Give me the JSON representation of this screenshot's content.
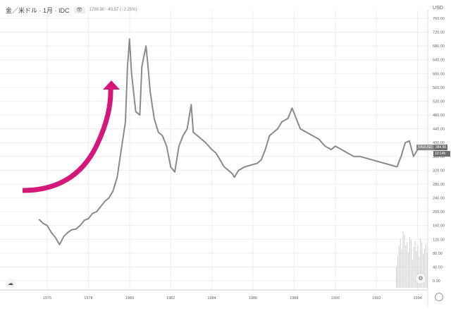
{
  "header": {
    "symbol_title": "金／米ドル · 1月 · IDC",
    "visibility_toggle": "👁",
    "ohlc_change": "1769.90  −40.57 (−2.25%)"
  },
  "axis": {
    "currency": "USD",
    "y_labels": [
      "760.00",
      "720.00",
      "680.00",
      "640.00",
      "600.00",
      "560.00",
      "520.00",
      "480.00",
      "440.00",
      "400.00",
      "360.00",
      "320.00",
      "280.00",
      "240.00",
      "200.00",
      "160.00",
      "120.00",
      "80.00",
      "40.00",
      "0.00"
    ],
    "x_labels": [
      "1976",
      "1978",
      "1980",
      "1982",
      "1984",
      "1986",
      "1988",
      "1990",
      "1992",
      "1994"
    ]
  },
  "price_tag": {
    "symbol": "XAUUSD",
    "price": "384.90",
    "countdown": "10:14h"
  },
  "annotation": {
    "type": "curved-arrow",
    "color": "#d6177a"
  },
  "colors": {
    "line": "#8a8a8a",
    "grid": "#efefef",
    "arrow": "#d6177a",
    "volume": "#cfcfcf",
    "tag_bg": "#777777"
  },
  "chart_data": {
    "type": "line",
    "title": "金／米ドル · 1月 · IDC",
    "xlabel": "",
    "ylabel": "USD",
    "ylim": [
      0,
      760
    ],
    "grid": true,
    "legend": "none",
    "x": [
      1975.6,
      1975.8,
      1976.0,
      1976.2,
      1976.4,
      1976.6,
      1976.8,
      1977.0,
      1977.2,
      1977.4,
      1977.6,
      1977.8,
      1978.0,
      1978.2,
      1978.4,
      1978.6,
      1978.8,
      1979.0,
      1979.2,
      1979.4,
      1979.6,
      1979.8,
      1979.9,
      1980.0,
      1980.1,
      1980.3,
      1980.5,
      1980.6,
      1980.8,
      1980.9,
      1981.0,
      1981.2,
      1981.4,
      1981.6,
      1981.8,
      1982.0,
      1982.2,
      1982.4,
      1982.6,
      1982.8,
      1983.0,
      1983.1,
      1983.3,
      1983.5,
      1983.7,
      1984.0,
      1984.2,
      1984.4,
      1984.6,
      1984.8,
      1985.0,
      1985.1,
      1985.3,
      1985.6,
      1985.9,
      1986.2,
      1986.4,
      1986.6,
      1986.8,
      1987.0,
      1987.2,
      1987.4,
      1987.7,
      1987.9,
      1988.1,
      1988.3,
      1988.6,
      1988.9,
      1989.2,
      1989.5,
      1989.8,
      1990.0,
      1990.3,
      1990.6,
      1990.9,
      1991.2,
      1991.5,
      1991.8,
      1992.1,
      1992.4,
      1992.7,
      1993.0,
      1993.2,
      1993.4,
      1993.6,
      1993.8,
      1994.0,
      1994.2
    ],
    "series": [
      {
        "name": "XAUUSD",
        "values": [
          178,
          166,
          160,
          140,
          125,
          105,
          128,
          140,
          148,
          150,
          160,
          175,
          180,
          195,
          200,
          215,
          230,
          240,
          260,
          300,
          380,
          460,
          620,
          700,
          600,
          490,
          480,
          620,
          680,
          620,
          550,
          470,
          430,
          420,
          390,
          330,
          315,
          390,
          420,
          440,
          510,
          430,
          420,
          410,
          400,
          380,
          370,
          350,
          330,
          320,
          310,
          300,
          320,
          330,
          335,
          340,
          350,
          380,
          420,
          430,
          440,
          460,
          470,
          500,
          470,
          440,
          430,
          420,
          410,
          390,
          380,
          390,
          380,
          370,
          360,
          360,
          355,
          350,
          345,
          340,
          335,
          330,
          360,
          400,
          405,
          360,
          380,
          385
        ]
      },
      {
        "name": "Volume",
        "values": []
      }
    ],
    "last_value": 384.9
  }
}
